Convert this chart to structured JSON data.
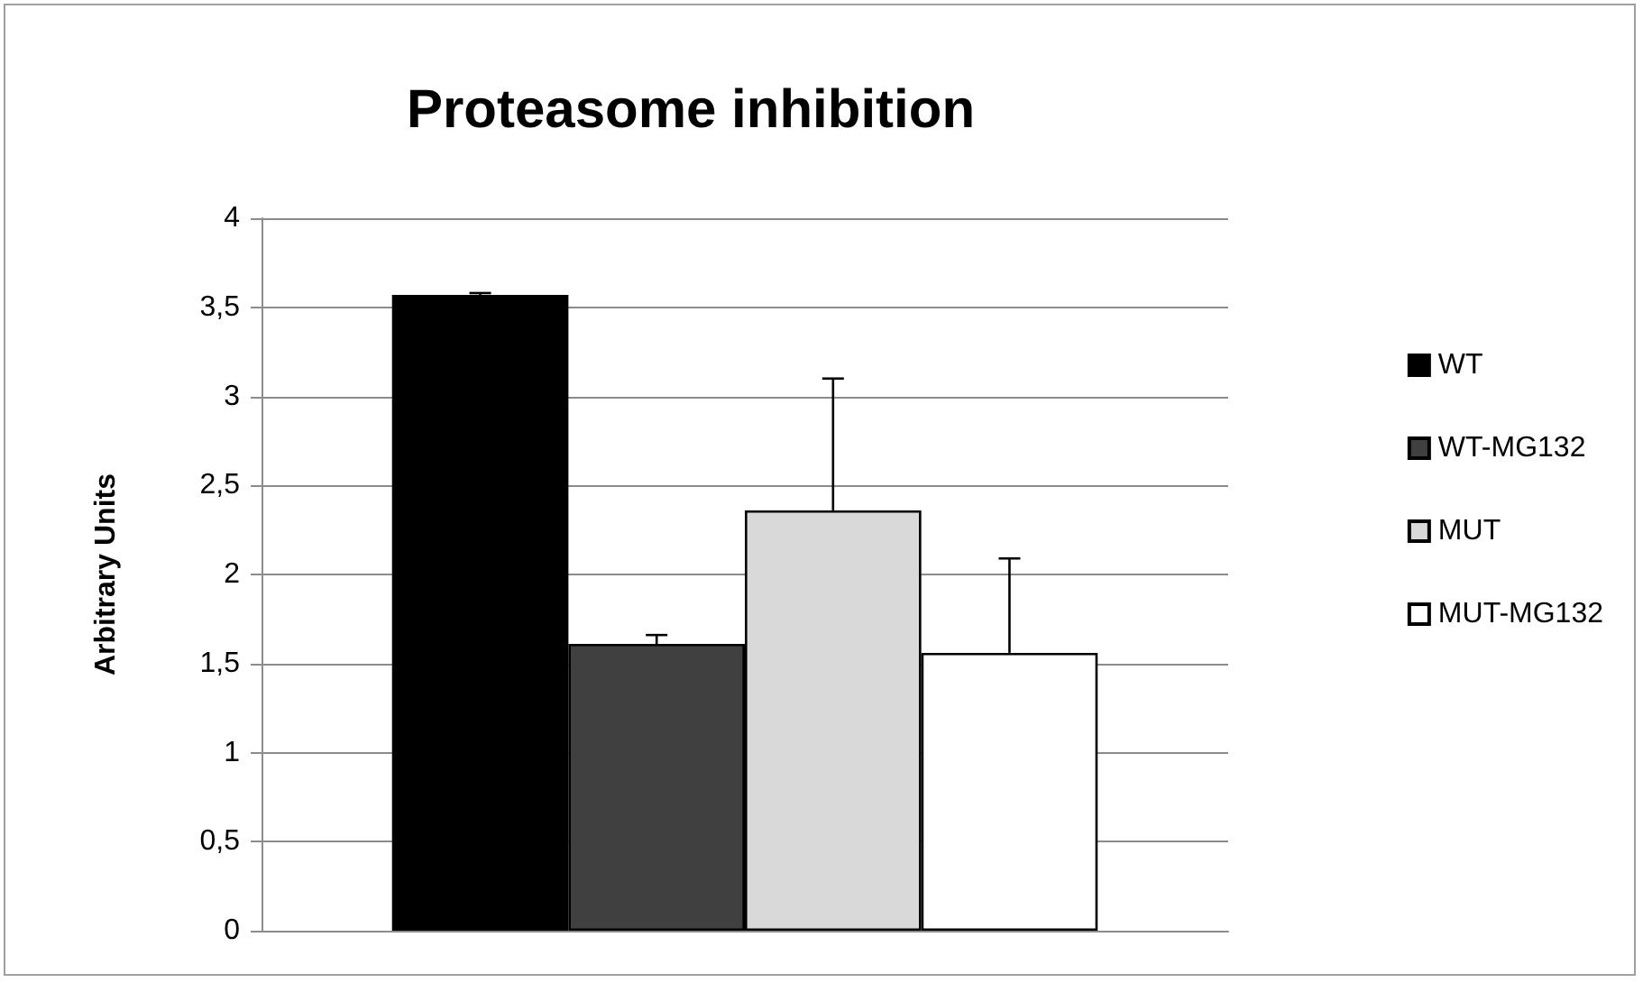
{
  "chart_data": {
    "type": "bar",
    "title": "Proteasome inhibition",
    "ylabel": "Arbitrary Units",
    "categories": [
      null
    ],
    "series": [
      {
        "name": "WT",
        "color": "#000000",
        "values": [
          3.57
        ],
        "errors": [
          [
            3.57,
            3.58
          ]
        ]
      },
      {
        "name": "WT-MG132",
        "color": "#404040",
        "values": [
          1.61
        ],
        "errors": [
          [
            1.61,
            1.66
          ]
        ]
      },
      {
        "name": "MUT",
        "color": "#d9d9d9",
        "values": [
          2.36
        ],
        "errors": [
          [
            2.36,
            3.1
          ]
        ]
      },
      {
        "name": "MUT-MG132",
        "color": "#ffffff",
        "values": [
          1.56
        ],
        "errors": [
          [
            1.56,
            2.09
          ]
        ]
      }
    ],
    "ylim": [
      0,
      4
    ],
    "yticks": [
      0,
      {
        "value": 0.5,
        "label": "0,5"
      },
      1,
      {
        "value": 1.5,
        "label": "1,5"
      },
      2,
      {
        "value": 2.5,
        "label": "2,5"
      },
      3,
      {
        "value": 3.5,
        "label": "3,5"
      },
      4
    ],
    "grid": "y",
    "legend": "right"
  }
}
